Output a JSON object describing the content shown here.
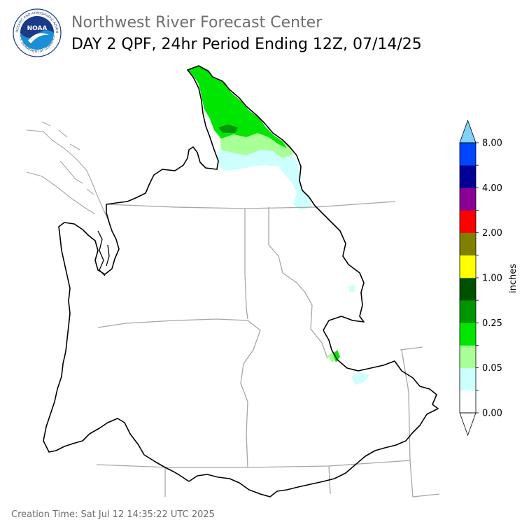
{
  "header": {
    "org": "Northwest River Forecast Center",
    "title": "DAY 2 QPF, 24hr Period Ending 12Z, 07/14/25"
  },
  "logo": {
    "text": "NOAA",
    "ring_top": "NATIONAL OCEANIC AND ATMOSPHERIC ADMINISTRATION",
    "ring_bottom": "U.S. DEPARTMENT OF COMMERCE"
  },
  "colorbar": {
    "unit_label": "inches",
    "tick_labels": [
      "0.00",
      "0.05",
      "0.25",
      "1.00",
      "2.00",
      "4.00",
      "8.00"
    ],
    "colors_bottom_to_top": [
      "#ffffff",
      "#ccfffd",
      "#a8ff96",
      "#00e600",
      "#009600",
      "#005000",
      "#ffff00",
      "#808000",
      "#ff0000",
      "#8a0096",
      "#000096",
      "#0046ff"
    ],
    "extend_low_color": "#ffffff",
    "extend_high_color": "#7fd3f7"
  },
  "footer": {
    "creation_time": "Creation Time: Sat Jul 12 14:35:22 UTC 2025"
  }
}
